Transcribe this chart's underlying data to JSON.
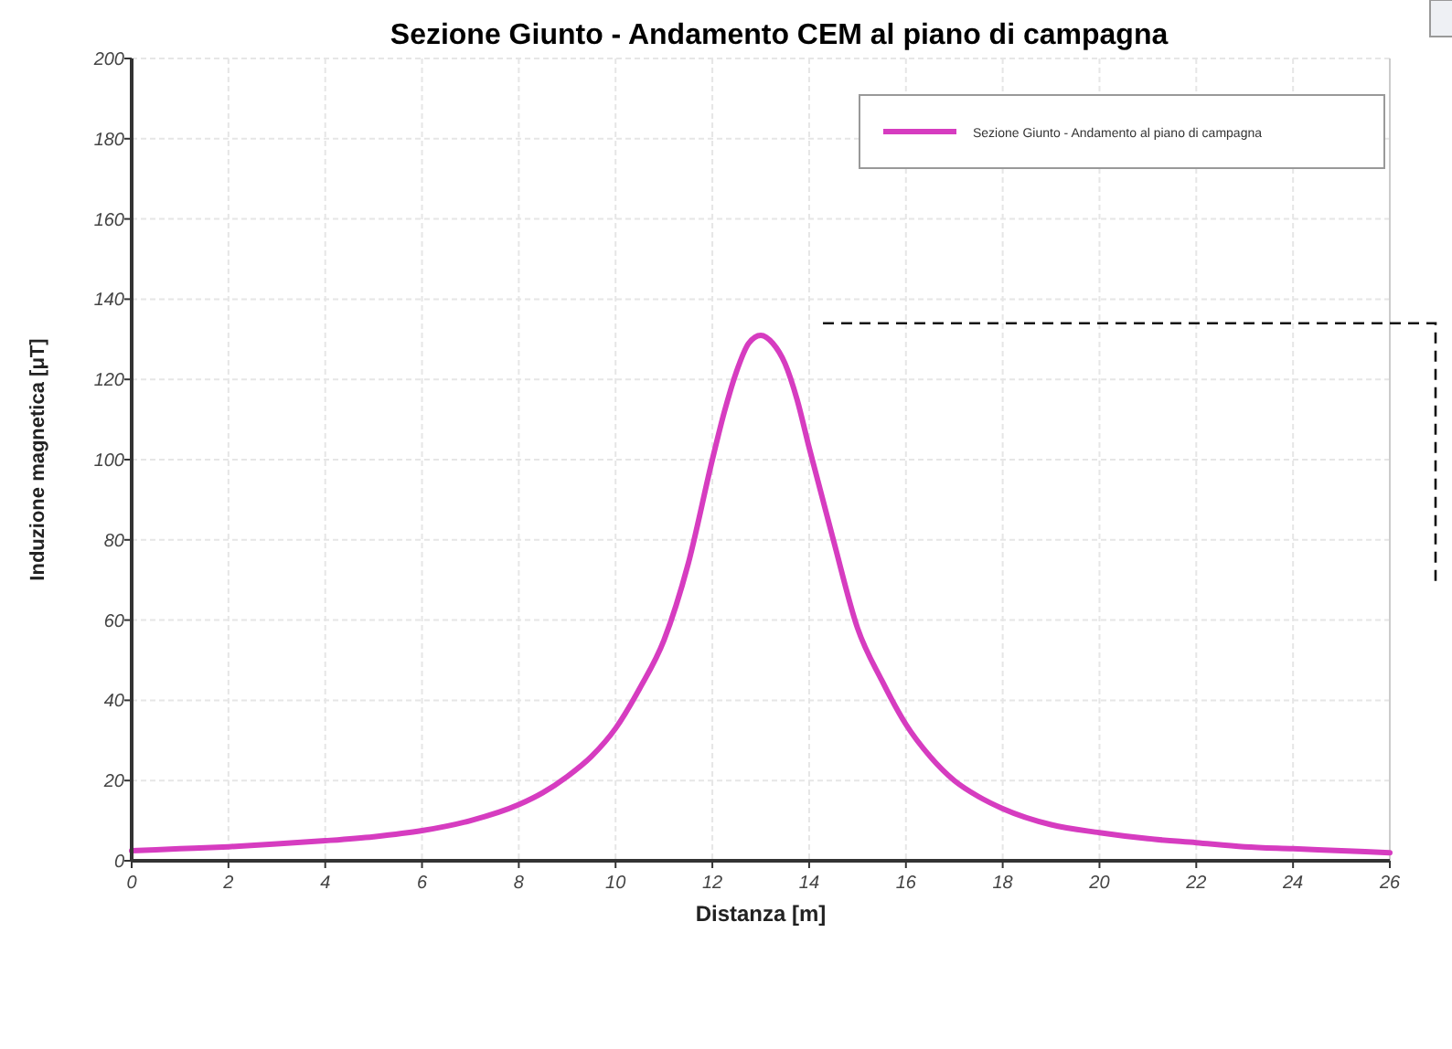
{
  "chart_data": {
    "type": "line",
    "title": "Sezione Giunto - Andamento CEM al piano di campagna",
    "xlabel": "Distanza [m]",
    "ylabel": "Induzione magnetica [μT]",
    "xlim": [
      0,
      26
    ],
    "xticks": [
      0,
      2,
      4,
      6,
      8,
      10,
      12,
      14,
      16,
      18,
      20,
      22,
      24,
      26
    ],
    "ylim": [
      0,
      200
    ],
    "yticks": [
      0,
      20,
      40,
      60,
      80,
      100,
      120,
      140,
      160,
      180,
      200
    ],
    "ref_lines": [
      {
        "axis": "y",
        "value": 134,
        "color": "#111111",
        "line_style": "dashed"
      }
    ],
    "grid": true,
    "legend": "top right",
    "marker": "none",
    "line_style": "solid",
    "series": [
      {
        "name": "Sezione Giunto - Andamento al piano di campagna",
        "color": "#d63cc0",
        "x": [
          0,
          1,
          2,
          3,
          4,
          5,
          6,
          7,
          8,
          8.5,
          9,
          9.5,
          10,
          10.5,
          11,
          11.5,
          12,
          12.25,
          12.5,
          12.75,
          13,
          13.25,
          13.5,
          13.75,
          14,
          14.5,
          15,
          15.5,
          16,
          16.5,
          17,
          17.5,
          18,
          19,
          20,
          21,
          22,
          23,
          24,
          25,
          26
        ],
        "values": [
          2.5,
          3,
          3.5,
          4.2,
          5,
          6,
          7.5,
          10,
          14,
          17,
          21,
          26,
          33,
          43,
          55,
          74,
          100,
          112,
          122,
          129,
          131,
          129,
          124,
          115,
          103,
          80,
          58,
          45,
          34,
          26,
          20,
          16,
          13,
          9,
          7,
          5.5,
          4.5,
          3.5,
          3,
          2.5,
          2
        ]
      }
    ]
  }
}
